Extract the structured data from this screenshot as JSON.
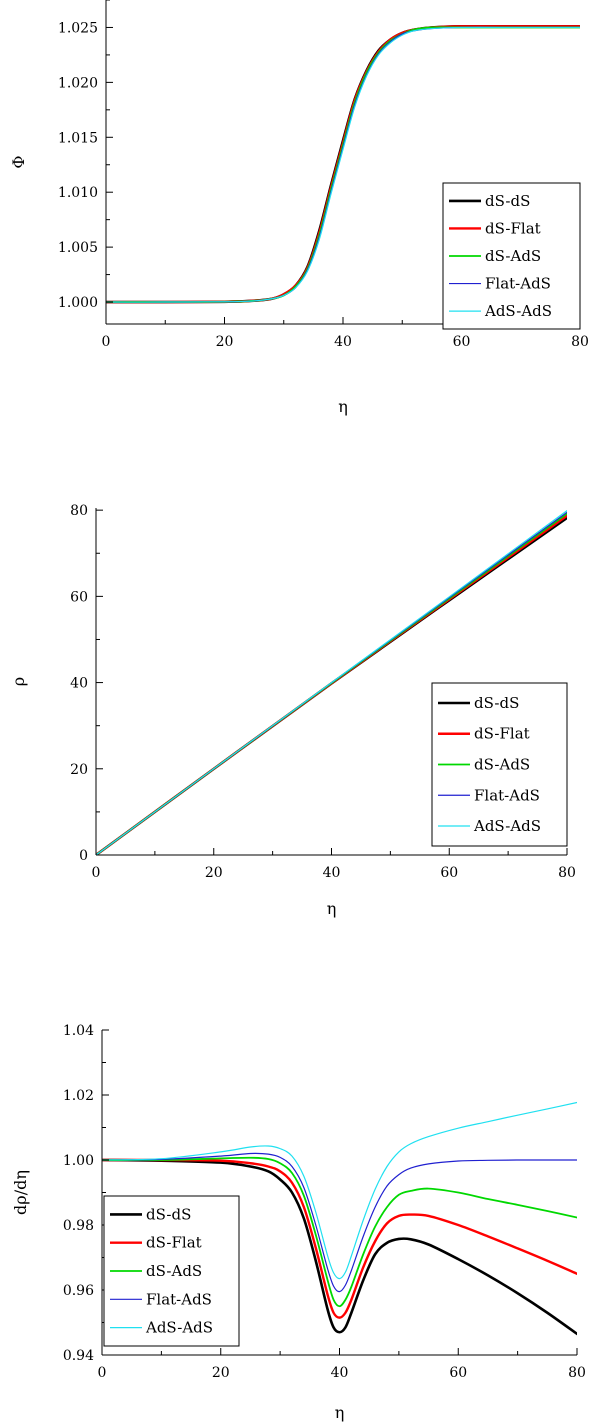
{
  "chart_data": [
    {
      "type": "line",
      "xlabel": "η",
      "ylabel": "Φ",
      "xlim": [
        0,
        80
      ],
      "ylim": [
        0.998,
        1.0275
      ],
      "xticks": [
        0,
        20,
        40,
        60,
        80
      ],
      "xtick_labels": [
        "0",
        "20",
        "40",
        "60",
        "80"
      ],
      "yticks": [
        1.0,
        1.005,
        1.01,
        1.015,
        1.02,
        1.025
      ],
      "ytick_labels": [
        "1.000",
        "1.005",
        "1.010",
        "1.015",
        "1.020",
        "1.025"
      ],
      "grid": false,
      "legend_position": "bottom-right",
      "series": [
        {
          "name": "dS-dS",
          "color": "#000000",
          "width": 2.6,
          "x": [
            0,
            10,
            20,
            25,
            28,
            30,
            32,
            34,
            36,
            38,
            40,
            42,
            44,
            46,
            48,
            50,
            52,
            55,
            60,
            70,
            80
          ],
          "y": [
            1.0,
            1.0,
            1.00002,
            1.00012,
            1.0003,
            1.0007,
            1.0015,
            1.0032,
            1.0065,
            1.0107,
            1.0147,
            1.0185,
            1.0211,
            1.0229,
            1.0239,
            1.0245,
            1.0248,
            1.025,
            1.0251,
            1.0251,
            1.0251
          ]
        },
        {
          "name": "dS-Flat",
          "color": "#ff0000",
          "width": 2.4,
          "x": [
            0,
            10,
            20,
            25,
            28,
            30,
            32,
            34,
            36,
            38,
            40,
            42,
            44,
            46,
            48,
            50,
            52,
            55,
            60,
            70,
            80
          ],
          "y": [
            1.0,
            1.0,
            1.00002,
            1.00012,
            1.0003,
            1.0007,
            1.0015,
            1.0031,
            1.0063,
            1.0105,
            1.0145,
            1.0184,
            1.021,
            1.0228,
            1.0239,
            1.0245,
            1.0248,
            1.025,
            1.0251,
            1.0251,
            1.0251
          ]
        },
        {
          "name": "dS-AdS",
          "color": "#00d800",
          "width": 1.8,
          "x": [
            0,
            10,
            20,
            25,
            28,
            30,
            32,
            34,
            36,
            38,
            40,
            42,
            44,
            46,
            48,
            50,
            52,
            55,
            60,
            70,
            80
          ],
          "y": [
            1.0,
            1.0,
            1.00002,
            1.00011,
            1.0003,
            1.0006,
            1.0014,
            1.003,
            1.0061,
            1.0103,
            1.0143,
            1.0182,
            1.0209,
            1.0227,
            1.0238,
            1.0244,
            1.0248,
            1.025,
            1.025,
            1.025,
            1.025
          ]
        },
        {
          "name": "Flat-AdS",
          "color": "#2020d0",
          "width": 1.2,
          "x": [
            0,
            10,
            20,
            25,
            28,
            30,
            32,
            34,
            36,
            38,
            40,
            42,
            44,
            46,
            48,
            50,
            52,
            55,
            60,
            70,
            80
          ],
          "y": [
            1.0,
            1.0,
            1.00002,
            1.0001,
            1.0003,
            1.0006,
            1.0013,
            1.0029,
            1.0059,
            1.0101,
            1.0141,
            1.018,
            1.0207,
            1.0226,
            1.0237,
            1.0244,
            1.0247,
            1.0249,
            1.025,
            1.025,
            1.025
          ]
        },
        {
          "name": "AdS-AdS",
          "color": "#20e0f0",
          "width": 1.2,
          "x": [
            0,
            10,
            20,
            25,
            28,
            30,
            32,
            34,
            36,
            38,
            40,
            42,
            44,
            46,
            48,
            50,
            52,
            55,
            60,
            70,
            80
          ],
          "y": [
            1.0,
            1.0,
            1.00002,
            1.0001,
            1.0003,
            1.0006,
            1.0013,
            1.0028,
            1.0057,
            1.0099,
            1.0139,
            1.0178,
            1.0206,
            1.0225,
            1.0236,
            1.0243,
            1.0247,
            1.0249,
            1.025,
            1.025,
            1.025
          ]
        }
      ]
    },
    {
      "type": "line",
      "xlabel": "η",
      "ylabel": "ρ",
      "xlim": [
        0,
        80
      ],
      "ylim": [
        0,
        80.5
      ],
      "xticks": [
        0,
        20,
        40,
        60,
        80
      ],
      "xtick_labels": [
        "0",
        "20",
        "40",
        "60",
        "80"
      ],
      "yticks": [
        0,
        20,
        40,
        60,
        80
      ],
      "ytick_labels": [
        "0",
        "20",
        "40",
        "60",
        "80"
      ],
      "grid": false,
      "legend_position": "bottom-right",
      "series": [
        {
          "name": "dS-dS",
          "color": "#000000",
          "width": 2.6,
          "x": [
            0,
            20,
            40,
            60,
            80
          ],
          "y": [
            0,
            19.98,
            39.8,
            59.1,
            78.2
          ]
        },
        {
          "name": "dS-Flat",
          "color": "#ff0000",
          "width": 2.4,
          "x": [
            0,
            20,
            40,
            60,
            80
          ],
          "y": [
            0,
            19.99,
            39.85,
            59.3,
            78.7
          ]
        },
        {
          "name": "dS-AdS",
          "color": "#00d800",
          "width": 1.8,
          "x": [
            0,
            20,
            40,
            60,
            80
          ],
          "y": [
            0,
            20.0,
            39.9,
            59.5,
            79.2
          ]
        },
        {
          "name": "Flat-AdS",
          "color": "#2020d0",
          "width": 1.2,
          "x": [
            0,
            20,
            40,
            60,
            80
          ],
          "y": [
            0,
            20.0,
            39.95,
            59.7,
            79.5
          ]
        },
        {
          "name": "AdS-AdS",
          "color": "#20e0f0",
          "width": 1.2,
          "x": [
            0,
            20,
            40,
            60,
            80
          ],
          "y": [
            0,
            20.02,
            40.0,
            59.9,
            79.9
          ]
        }
      ]
    },
    {
      "type": "line",
      "xlabel": "η",
      "ylabel": "dρ/dη",
      "xlim": [
        0,
        80
      ],
      "ylim": [
        0.94,
        1.04
      ],
      "xticks": [
        0,
        20,
        40,
        60,
        80
      ],
      "xtick_labels": [
        "0",
        "20",
        "40",
        "60",
        "80"
      ],
      "yticks": [
        0.94,
        0.96,
        0.98,
        1.0,
        1.02,
        1.04
      ],
      "ytick_labels": [
        "0.94",
        "0.96",
        "0.98",
        "1.00",
        "1.02",
        "1.04"
      ],
      "grid": false,
      "legend_position": "bottom-left",
      "series": [
        {
          "name": "dS-dS",
          "color": "#000000",
          "width": 2.6,
          "x": [
            0,
            10,
            20,
            25,
            28,
            30,
            32,
            34,
            36,
            38,
            39,
            40,
            41,
            42,
            44,
            46,
            48,
            50,
            52,
            55,
            60,
            65,
            70,
            75,
            80
          ],
          "y": [
            1.0,
            0.9998,
            0.9992,
            0.998,
            0.9965,
            0.994,
            0.99,
            0.982,
            0.969,
            0.954,
            0.9485,
            0.947,
            0.9485,
            0.953,
            0.963,
            0.971,
            0.9745,
            0.9757,
            0.9756,
            0.974,
            0.9695,
            0.9645,
            0.959,
            0.953,
            0.9465
          ]
        },
        {
          "name": "dS-Flat",
          "color": "#ff0000",
          "width": 2.4,
          "x": [
            0,
            10,
            20,
            25,
            28,
            30,
            32,
            34,
            36,
            38,
            39,
            40,
            41,
            42,
            44,
            46,
            48,
            50,
            52,
            55,
            60,
            65,
            70,
            75,
            80
          ],
          "y": [
            1.0,
            1.0,
            0.9998,
            0.999,
            0.998,
            0.9965,
            0.993,
            0.9855,
            0.973,
            0.9585,
            0.953,
            0.9515,
            0.953,
            0.957,
            0.967,
            0.975,
            0.9805,
            0.9828,
            0.9832,
            0.9828,
            0.98,
            0.9765,
            0.9728,
            0.969,
            0.965
          ]
        },
        {
          "name": "dS-AdS",
          "color": "#00d800",
          "width": 1.8,
          "x": [
            0,
            10,
            20,
            25,
            28,
            30,
            32,
            34,
            36,
            38,
            39,
            40,
            41,
            42,
            44,
            46,
            48,
            50,
            52,
            55,
            60,
            65,
            70,
            75,
            80
          ],
          "y": [
            1.0,
            1.0,
            1.0005,
            1.0007,
            1.0003,
            0.999,
            0.996,
            0.989,
            0.977,
            0.963,
            0.957,
            0.955,
            0.957,
            0.961,
            0.971,
            0.9795,
            0.9855,
            0.9893,
            0.9905,
            0.9912,
            0.99,
            0.988,
            0.9862,
            0.9843,
            0.9823
          ]
        },
        {
          "name": "Flat-AdS",
          "color": "#2020d0",
          "width": 1.2,
          "x": [
            0,
            10,
            20,
            25,
            28,
            30,
            32,
            34,
            36,
            38,
            39,
            40,
            41,
            42,
            44,
            46,
            48,
            50,
            52,
            55,
            60,
            65,
            70,
            75,
            80
          ],
          "y": [
            1.0,
            1.0002,
            1.0012,
            1.002,
            1.0018,
            1.0008,
            0.998,
            0.9915,
            0.98,
            0.9665,
            0.9612,
            0.9595,
            0.9615,
            0.966,
            0.9765,
            0.9855,
            0.992,
            0.9955,
            0.9975,
            0.9988,
            0.9997,
            0.9999,
            1.0,
            1.0,
            1.0
          ]
        },
        {
          "name": "AdS-AdS",
          "color": "#20e0f0",
          "width": 1.2,
          "x": [
            0,
            10,
            20,
            25,
            28,
            30,
            32,
            34,
            36,
            38,
            39,
            40,
            41,
            42,
            44,
            46,
            48,
            50,
            52,
            55,
            60,
            65,
            70,
            75,
            80
          ],
          "y": [
            1.0,
            1.0004,
            1.0025,
            1.004,
            1.0043,
            1.0035,
            1.0012,
            0.995,
            0.984,
            0.9705,
            0.9653,
            0.9635,
            0.9655,
            0.9705,
            0.9815,
            0.991,
            0.998,
            1.0025,
            1.005,
            1.0072,
            1.0098,
            1.0118,
            1.0138,
            1.0157,
            1.0177
          ]
        }
      ]
    }
  ]
}
